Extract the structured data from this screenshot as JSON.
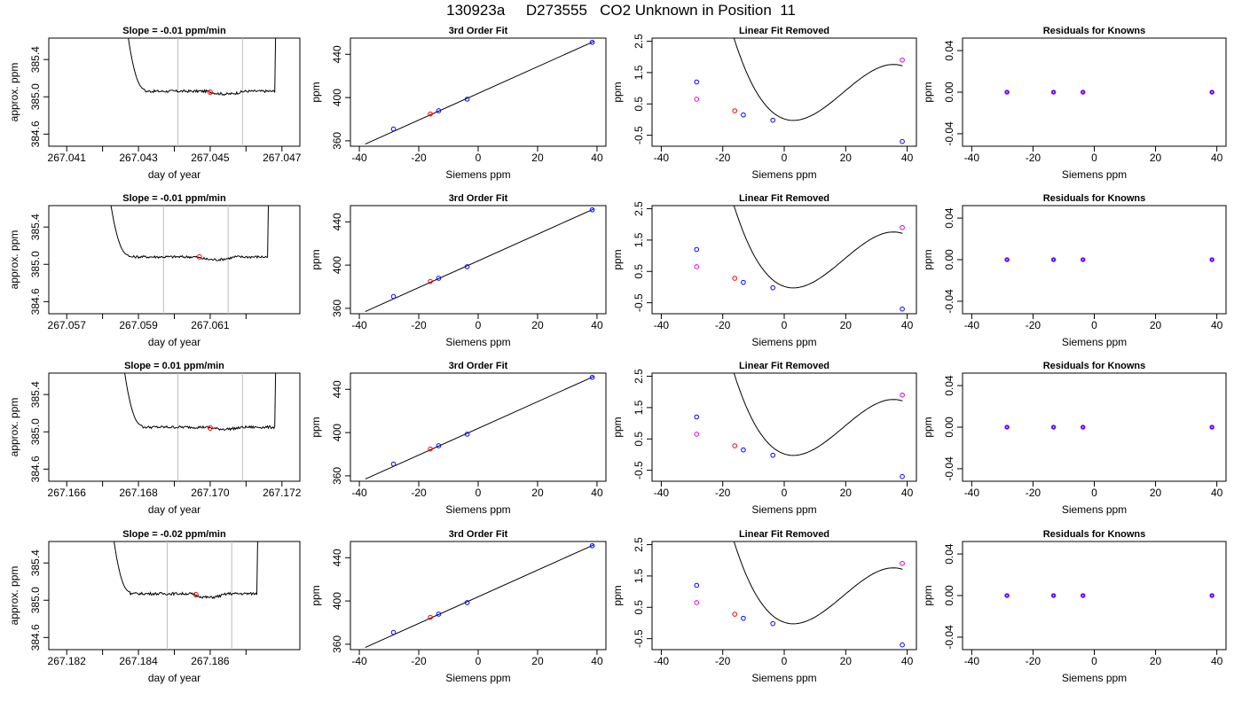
{
  "title": "130923a     D273555   CO2 Unknown in Position  11",
  "colors": {
    "trace": "#000000",
    "vline": "#bdbdbd",
    "unknown": "#ff0000",
    "known": "#0000ff",
    "residual_unknown": "#d800d8",
    "fit": "#000000"
  },
  "rows": [
    {
      "drift": {
        "title": "Slope =  -0.01  ppm/min",
        "xlabel": "day of year",
        "ylabel": "approx. ppm",
        "xticks": [
          "267.041",
          "267.043",
          "267.045",
          "267.047"
        ],
        "xlim": [
          267.0405,
          267.0475
        ],
        "yticks": [
          "384.6",
          "385.0",
          "385.4"
        ],
        "ylim": [
          384.47,
          385.63
        ],
        "vlines": [
          267.0441,
          267.0459
        ],
        "trace_start": 267.0426,
        "trace_end": 267.0468,
        "level": 385.06,
        "dip": 385.03,
        "point": [
          267.045,
          385.05
        ]
      },
      "fit": {
        "title": "3rd Order Fit",
        "xlabel": "Siemens ppm",
        "ylabel": "ppm",
        "xticks": [
          "-40",
          "-20",
          "0",
          "20",
          "40"
        ],
        "xlim": [
          -43,
          43
        ],
        "yticks": [
          "360",
          "400",
          "440"
        ],
        "ylim": [
          355,
          455
        ],
        "knowns": [
          [
            -28.5,
            370.9
          ],
          [
            -13.3,
            387.8
          ],
          [
            -3.7,
            398.5
          ],
          [
            38.4,
            451.1
          ]
        ],
        "unknown": [
          -16.1,
          384.8
        ]
      },
      "linear": {
        "title": "Linear Fit Removed",
        "xlabel": "Siemens ppm",
        "ylabel": "ppm",
        "xticks": [
          "-40",
          "-20",
          "0",
          "20",
          "40"
        ],
        "xlim": [
          -43,
          43
        ],
        "yticks": [
          "-0.5",
          "0.5",
          "1.5",
          "2.5"
        ],
        "ylim": [
          -0.85,
          2.6
        ],
        "knowns": [
          [
            -28.5,
            1.2
          ],
          [
            -13.3,
            0.15
          ],
          [
            -3.7,
            -0.02
          ],
          [
            38.4,
            -0.7
          ]
        ],
        "unknown": [
          -16.1,
          0.28
        ],
        "raw": [
          [
            -28.5,
            0.65
          ],
          [
            38.4,
            1.9
          ]
        ]
      },
      "resid": {
        "title": "Residuals for Knowns",
        "xlabel": "Siemens ppm",
        "ylabel": "ppm",
        "xticks": [
          "-40",
          "-20",
          "0",
          "20",
          "40"
        ],
        "xlim": [
          -43,
          43
        ],
        "yticks": [
          "-0.04",
          "0.00",
          "0.04"
        ],
        "ylim": [
          -0.052,
          0.052
        ],
        "points": [
          [
            -28.5,
            0.0
          ],
          [
            -13.3,
            0.0
          ],
          [
            -3.7,
            0.0
          ],
          [
            38.4,
            0.0
          ]
        ]
      }
    },
    {
      "drift": {
        "title": "Slope =  -0.01  ppm/min",
        "xlabel": "day of year",
        "ylabel": "approx. ppm",
        "xticks": [
          "267.057",
          "267.059",
          "267.061"
        ],
        "xlim": [
          267.0565,
          267.0635
        ],
        "yticks": [
          "384.6",
          "385.0",
          "385.4"
        ],
        "ylim": [
          384.47,
          385.63
        ],
        "vlines": [
          267.0597,
          267.0615
        ],
        "trace_start": 267.0581,
        "trace_end": 267.0626,
        "level": 385.08,
        "dip": 385.05,
        "point": [
          267.0607,
          385.08
        ]
      },
      "fit": {
        "title": "3rd Order Fit",
        "xlabel": "Siemens ppm",
        "ylabel": "ppm",
        "xticks": [
          "-40",
          "-20",
          "0",
          "20",
          "40"
        ],
        "xlim": [
          -43,
          43
        ],
        "yticks": [
          "360",
          "400",
          "440"
        ],
        "ylim": [
          355,
          455
        ],
        "knowns": [
          [
            -28.5,
            370.9
          ],
          [
            -13.3,
            387.8
          ],
          [
            -3.7,
            398.5
          ],
          [
            38.4,
            451.1
          ]
        ],
        "unknown": [
          -16.1,
          384.8
        ]
      },
      "linear": {
        "title": "Linear Fit Removed",
        "xlabel": "Siemens ppm",
        "ylabel": "ppm",
        "xticks": [
          "-40",
          "-20",
          "0",
          "20",
          "40"
        ],
        "xlim": [
          -43,
          43
        ],
        "yticks": [
          "-0.5",
          "0.5",
          "1.5",
          "2.5"
        ],
        "ylim": [
          -0.85,
          2.6
        ],
        "knowns": [
          [
            -28.5,
            1.2
          ],
          [
            -13.3,
            0.15
          ],
          [
            -3.7,
            -0.02
          ],
          [
            38.4,
            -0.7
          ]
        ],
        "unknown": [
          -16.1,
          0.28
        ],
        "raw": [
          [
            -28.5,
            0.65
          ],
          [
            38.4,
            1.9
          ]
        ]
      },
      "resid": {
        "title": "Residuals for Knowns",
        "xlabel": "Siemens ppm",
        "ylabel": "ppm",
        "xticks": [
          "-40",
          "-20",
          "0",
          "20",
          "40"
        ],
        "xlim": [
          -43,
          43
        ],
        "yticks": [
          "-0.04",
          "0.00",
          "0.04"
        ],
        "ylim": [
          -0.052,
          0.052
        ],
        "points": [
          [
            -28.5,
            0.0
          ],
          [
            -13.3,
            0.0
          ],
          [
            -3.7,
            0.0
          ],
          [
            38.4,
            0.0
          ]
        ]
      }
    },
    {
      "drift": {
        "title": "Slope =  0.01  ppm/min",
        "xlabel": "day of year",
        "ylabel": "approx. ppm",
        "xticks": [
          "267.166",
          "267.168",
          "267.170",
          "267.172"
        ],
        "xlim": [
          267.1655,
          267.1725
        ],
        "yticks": [
          "384.6",
          "385.0",
          "385.4"
        ],
        "ylim": [
          384.47,
          385.63
        ],
        "vlines": [
          267.1691,
          267.1709
        ],
        "trace_start": 267.1675,
        "trace_end": 267.1718,
        "level": 385.05,
        "dip": 385.03,
        "point": [
          267.17,
          385.04
        ]
      },
      "fit": {
        "title": "3rd Order Fit",
        "xlabel": "Siemens ppm",
        "ylabel": "ppm",
        "xticks": [
          "-40",
          "-20",
          "0",
          "20",
          "40"
        ],
        "xlim": [
          -43,
          43
        ],
        "yticks": [
          "360",
          "400",
          "440"
        ],
        "ylim": [
          355,
          455
        ],
        "knowns": [
          [
            -28.5,
            370.9
          ],
          [
            -13.3,
            387.8
          ],
          [
            -3.7,
            398.5
          ],
          [
            38.4,
            451.1
          ]
        ],
        "unknown": [
          -16.1,
          384.8
        ]
      },
      "linear": {
        "title": "Linear Fit Removed",
        "xlabel": "Siemens ppm",
        "ylabel": "ppm",
        "xticks": [
          "-40",
          "-20",
          "0",
          "20",
          "40"
        ],
        "xlim": [
          -43,
          43
        ],
        "yticks": [
          "-0.5",
          "0.5",
          "1.5",
          "2.5"
        ],
        "ylim": [
          -0.85,
          2.6
        ],
        "knowns": [
          [
            -28.5,
            1.2
          ],
          [
            -13.3,
            0.15
          ],
          [
            -3.7,
            -0.02
          ],
          [
            38.4,
            -0.7
          ]
        ],
        "unknown": [
          -16.1,
          0.28
        ],
        "raw": [
          [
            -28.5,
            0.65
          ],
          [
            38.4,
            1.9
          ]
        ]
      },
      "resid": {
        "title": "Residuals for Knowns",
        "xlabel": "Siemens ppm",
        "ylabel": "ppm",
        "xticks": [
          "-40",
          "-20",
          "0",
          "20",
          "40"
        ],
        "xlim": [
          -43,
          43
        ],
        "yticks": [
          "-0.04",
          "0.00",
          "0.04"
        ],
        "ylim": [
          -0.052,
          0.052
        ],
        "points": [
          [
            -28.5,
            0.0
          ],
          [
            -13.3,
            0.0
          ],
          [
            -3.7,
            0.0
          ],
          [
            38.4,
            0.0
          ]
        ]
      }
    },
    {
      "drift": {
        "title": "Slope =  -0.02  ppm/min",
        "xlabel": "day of year",
        "ylabel": "approx. ppm",
        "xticks": [
          "267.182",
          "267.184",
          "267.186"
        ],
        "xlim": [
          267.1815,
          267.1885
        ],
        "yticks": [
          "384.6",
          "385.0",
          "385.4"
        ],
        "ylim": [
          384.47,
          385.63
        ],
        "vlines": [
          267.1848,
          267.1866
        ],
        "trace_start": 267.1832,
        "trace_end": 267.1873,
        "level": 385.07,
        "dip": 385.03,
        "point": [
          267.1856,
          385.06
        ]
      },
      "fit": {
        "title": "3rd Order Fit",
        "xlabel": "Siemens ppm",
        "ylabel": "ppm",
        "xticks": [
          "-40",
          "-20",
          "0",
          "20",
          "40"
        ],
        "xlim": [
          -43,
          43
        ],
        "yticks": [
          "360",
          "400",
          "440"
        ],
        "ylim": [
          355,
          455
        ],
        "knowns": [
          [
            -28.5,
            370.9
          ],
          [
            -13.3,
            387.8
          ],
          [
            -3.7,
            398.5
          ],
          [
            38.4,
            451.1
          ]
        ],
        "unknown": [
          -16.1,
          384.8
        ]
      },
      "linear": {
        "title": "Linear Fit Removed",
        "xlabel": "Siemens ppm",
        "ylabel": "ppm",
        "xticks": [
          "-40",
          "-20",
          "0",
          "20",
          "40"
        ],
        "xlim": [
          -43,
          43
        ],
        "yticks": [
          "-0.5",
          "0.5",
          "1.5",
          "2.5"
        ],
        "ylim": [
          -0.85,
          2.6
        ],
        "knowns": [
          [
            -28.5,
            1.2
          ],
          [
            -13.3,
            0.15
          ],
          [
            -3.7,
            -0.02
          ],
          [
            38.4,
            -0.7
          ]
        ],
        "unknown": [
          -16.1,
          0.28
        ],
        "raw": [
          [
            -28.5,
            0.65
          ],
          [
            38.4,
            1.9
          ]
        ]
      },
      "resid": {
        "title": "Residuals for Knowns",
        "xlabel": "Siemens ppm",
        "ylabel": "ppm",
        "xticks": [
          "-40",
          "-20",
          "0",
          "20",
          "40"
        ],
        "xlim": [
          -43,
          43
        ],
        "yticks": [
          "-0.04",
          "0.00",
          "0.04"
        ],
        "ylim": [
          -0.052,
          0.052
        ],
        "points": [
          [
            -28.5,
            0.0
          ],
          [
            -13.3,
            0.0
          ],
          [
            -3.7,
            0.0
          ],
          [
            38.4,
            0.0
          ]
        ]
      }
    }
  ],
  "chart_data": [
    {
      "type": "line",
      "title": "Slope =  -0.01  ppm/min",
      "xlabel": "day of year",
      "ylabel": "approx. ppm",
      "xlim": [
        267.0405,
        267.0475
      ],
      "ylim": [
        384.47,
        385.63
      ],
      "series": [
        {
          "values": [
            [
              267.0426,
              385.8
            ],
            [
              267.0432,
              385.1
            ],
            [
              267.045,
              385.06
            ],
            [
              267.0468,
              385.06
            ]
          ]
        }
      ]
    },
    {
      "type": "scatter",
      "title": "3rd Order Fit",
      "xlabel": "Siemens ppm",
      "ylabel": "ppm",
      "xlim": [
        -43,
        43
      ],
      "ylim": [
        355,
        455
      ],
      "series": [
        {
          "values": [
            [
              -28.5,
              370.9
            ],
            [
              -13.3,
              387.8
            ],
            [
              -3.7,
              398.5
            ],
            [
              38.4,
              451.1
            ],
            [
              -16.1,
              384.8
            ]
          ]
        }
      ]
    },
    {
      "type": "scatter",
      "title": "Linear Fit Removed",
      "xlabel": "Siemens ppm",
      "ylabel": "ppm",
      "xlim": [
        -43,
        43
      ],
      "ylim": [
        -0.85,
        2.6
      ],
      "series": [
        {
          "values": [
            [
              -28.5,
              1.2
            ],
            [
              -13.3,
              0.15
            ],
            [
              -3.7,
              -0.02
            ],
            [
              38.4,
              -0.7
            ],
            [
              -16.1,
              0.28
            ],
            [
              -28.5,
              0.65
            ],
            [
              38.4,
              1.9
            ]
          ]
        }
      ]
    },
    {
      "type": "scatter",
      "title": "Residuals for Knowns",
      "xlabel": "Siemens ppm",
      "ylabel": "ppm",
      "xlim": [
        -43,
        43
      ],
      "ylim": [
        -0.052,
        0.052
      ],
      "series": [
        {
          "values": [
            [
              -28.5,
              0.0
            ],
            [
              -13.3,
              0.0
            ],
            [
              -3.7,
              0.0
            ],
            [
              38.4,
              0.0
            ]
          ]
        }
      ]
    }
  ]
}
